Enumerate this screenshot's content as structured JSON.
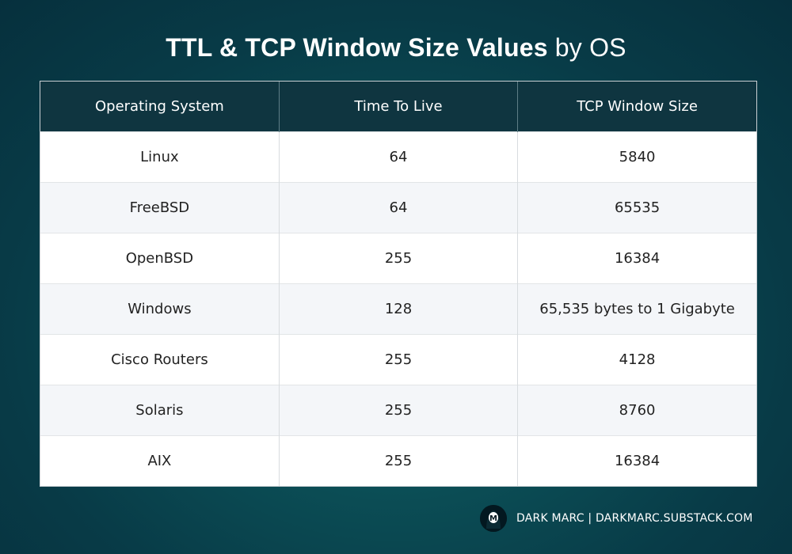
{
  "title": {
    "bold": "TTL & TCP Window Size Values",
    "light": "by OS"
  },
  "table": {
    "headers": [
      "Operating System",
      "Time To Live",
      "TCP Window Size"
    ],
    "rows": [
      [
        "Linux",
        "64",
        "5840"
      ],
      [
        "FreeBSD",
        "64",
        "65535"
      ],
      [
        "OpenBSD",
        "255",
        "16384"
      ],
      [
        "Windows",
        "128",
        "65,535 bytes to 1 Gigabyte"
      ],
      [
        "Cisco Routers",
        "255",
        "4128"
      ],
      [
        "Solaris",
        "255",
        "8760"
      ],
      [
        "AIX",
        "255",
        "16384"
      ]
    ]
  },
  "footer": {
    "text": "DARK MARC | DARKMARC.SUBSTACK.COM",
    "avatar_letter": "M"
  },
  "colors": {
    "background": "#0b4d55",
    "header_bg": "#0f3540",
    "row_alt": "#f4f6f9"
  }
}
